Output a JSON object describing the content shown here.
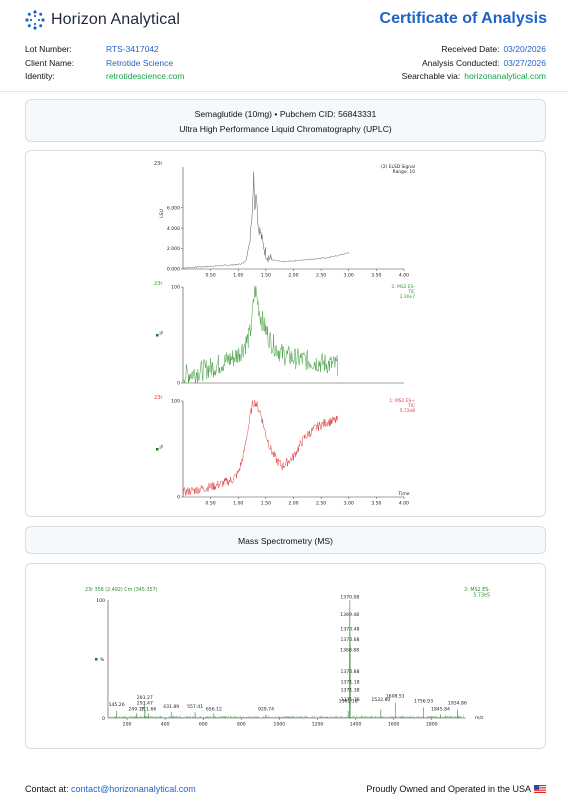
{
  "header": {
    "brand": "Horizon Analytical",
    "doc_title": "Certificate of Analysis"
  },
  "meta_left": [
    {
      "label": "Lot Number:",
      "value": "RTS-3417042",
      "color": "blue"
    },
    {
      "label": "Client Name:",
      "value": "Retrotide Science",
      "color": "blue"
    },
    {
      "label": "Identity:",
      "value": "retrotidescience.com",
      "color": "green"
    }
  ],
  "meta_right": [
    {
      "label": "Received Date:",
      "value": "03/20/2026",
      "color": "blue"
    },
    {
      "label": "Analysis Conducted:",
      "value": "03/27/2026",
      "color": "blue"
    },
    {
      "label": "Searchable via:",
      "value": "horizonanalytical.com",
      "color": "green"
    }
  ],
  "uplc_section": {
    "line1": "Semaglutide (10mg) • Pubchem CID: 56843331",
    "line2": "Ultra High Performance Liquid Chromatography (UPLC)"
  },
  "ms_section": {
    "title": "Mass Spectrometry (MS)"
  },
  "chart_data": [
    {
      "type": "line",
      "panel": "ELSD",
      "corner_label": "23r",
      "legend": [
        "(2) ELSD Signal",
        "Range: 10"
      ],
      "ylabel": "LSU",
      "yticks": [
        "0.000",
        "2.000",
        "4.000",
        "6.000"
      ],
      "xticks": [
        "0.50",
        "1.00",
        "1.50",
        "2.00",
        "2.50",
        "3.00",
        "3.50",
        "4.00"
      ],
      "xlim": [
        0.0,
        4.0
      ],
      "ylim": [
        0,
        10
      ],
      "color": "#555555",
      "x": [
        0.0,
        0.3,
        0.6,
        0.9,
        1.0,
        1.1,
        1.15,
        1.2,
        1.25,
        1.28,
        1.3,
        1.33,
        1.36,
        1.4,
        1.45,
        1.5,
        1.6,
        1.7,
        1.8,
        2.0,
        2.2,
        2.4,
        2.6,
        2.8,
        3.0
      ],
      "y": [
        0.1,
        0.2,
        0.3,
        0.4,
        0.45,
        0.6,
        1.0,
        2.5,
        5.5,
        9.2,
        6.2,
        7.6,
        4.2,
        3.6,
        2.4,
        1.5,
        0.9,
        0.8,
        0.7,
        0.8,
        0.9,
        1.0,
        1.1,
        1.3,
        1.6
      ]
    },
    {
      "type": "line",
      "panel": "MS2 ES- TIC",
      "corner_label": "23r",
      "legend": [
        "2: MS2 ES-",
        "TIC",
        "2.30e7"
      ],
      "ylabel": "%",
      "yticks": [
        "0",
        "100"
      ],
      "xlim": [
        0.0,
        4.0
      ],
      "ylim": [
        0,
        100
      ],
      "color": "#3a9a3a",
      "x": [
        0.0,
        0.3,
        0.6,
        0.9,
        1.0,
        1.1,
        1.2,
        1.25,
        1.3,
        1.35,
        1.4,
        1.5,
        1.6,
        1.8,
        2.0,
        2.2,
        2.4,
        2.6,
        2.8
      ],
      "y": [
        8,
        12,
        18,
        26,
        30,
        38,
        48,
        65,
        100,
        85,
        70,
        55,
        42,
        30,
        26,
        24,
        22,
        20,
        18
      ]
    },
    {
      "type": "line",
      "panel": "MS2 ES+ TIC",
      "corner_label": "23r",
      "legend": [
        "1: MS2 ES+",
        "TIC",
        "5.72e8"
      ],
      "ylabel": "%",
      "yticks": [
        "0",
        "100"
      ],
      "xticks": [
        "0.50",
        "1.00",
        "1.50",
        "2.00",
        "2.50",
        "3.00",
        "3.50",
        "4.00"
      ],
      "xlabel": "Time",
      "xlim": [
        0.0,
        4.0
      ],
      "ylim": [
        0,
        100
      ],
      "color": "#e23b3b",
      "x": [
        0.0,
        0.3,
        0.6,
        0.9,
        1.0,
        1.1,
        1.2,
        1.25,
        1.3,
        1.4,
        1.5,
        1.6,
        1.7,
        1.8,
        2.0,
        2.2,
        2.4,
        2.6,
        2.8
      ],
      "y": [
        5,
        8,
        12,
        18,
        25,
        45,
        78,
        95,
        100,
        88,
        65,
        48,
        38,
        32,
        42,
        62,
        72,
        78,
        80
      ]
    },
    {
      "type": "bar",
      "panel": "MS spectrum",
      "title": "23r 356 (2.492) Cm (345:357)",
      "legend": [
        "2: MS2 ES-",
        "5.73e5"
      ],
      "ylabel": "%",
      "xlabel": "m/z",
      "yticks": [
        "0",
        "100"
      ],
      "xticks": [
        "200",
        "400",
        "600",
        "800",
        "1000",
        "1200",
        "1400",
        "1600",
        "1800"
      ],
      "xlim": [
        100,
        1980
      ],
      "ylim": [
        0,
        100
      ],
      "peaks": [
        {
          "mz": 145.26,
          "intensity": 6
        },
        {
          "mz": 249.17,
          "intensity": 4
        },
        {
          "mz": 293.27,
          "intensity": 12
        },
        {
          "mz": 293.47,
          "intensity": 7
        },
        {
          "mz": 311.66,
          "intensity": 4
        },
        {
          "mz": 431.89,
          "intensity": 5
        },
        {
          "mz": 557.41,
          "intensity": 5
        },
        {
          "mz": 656.12,
          "intensity": 4
        },
        {
          "mz": 929.74,
          "intensity": 3
        },
        {
          "mz": 1361.18,
          "intensity": 6
        },
        {
          "mz": 1368.88,
          "intensity": 55
        },
        {
          "mz": 1369.48,
          "intensity": 85
        },
        {
          "mz": 1370.08,
          "intensity": 100
        },
        {
          "mz": 1370.48,
          "intensity": 73
        },
        {
          "mz": 1370.68,
          "intensity": 62
        },
        {
          "mz": 1370.88,
          "intensity": 38
        },
        {
          "mz": 1371.18,
          "intensity": 26
        },
        {
          "mz": 1371.38,
          "intensity": 19
        },
        {
          "mz": 1371.78,
          "intensity": 9
        },
        {
          "mz": 1532.8,
          "intensity": 7
        },
        {
          "mz": 1608.51,
          "intensity": 13
        },
        {
          "mz": 1756.93,
          "intensity": 9
        },
        {
          "mz": 1845.84,
          "intensity": 3
        },
        {
          "mz": 1934.86,
          "intensity": 7
        }
      ],
      "peak_labels": [
        {
          "text": "1370.08",
          "mz": 1370.08,
          "intensity": 100
        },
        {
          "text": "1369.48",
          "mz": 1369.48,
          "intensity": 85
        },
        {
          "text": "1370.48",
          "mz": 1370.48,
          "intensity": 73
        },
        {
          "text": "1370.68",
          "mz": 1370.68,
          "intensity": 64
        },
        {
          "text": "1368.88",
          "mz": 1368.88,
          "intensity": 55
        },
        {
          "text": "1370.88",
          "mz": 1370.88,
          "intensity": 37
        },
        {
          "text": "1371.18",
          "mz": 1371.18,
          "intensity": 28
        },
        {
          "text": "1371.38",
          "mz": 1371.38,
          "intensity": 21
        },
        {
          "text": "1361.18",
          "mz": 1361.18,
          "intensity": 12
        },
        {
          "text": "1371.78",
          "mz": 1371.78,
          "intensity": 13
        },
        {
          "text": "1532.80",
          "mz": 1532.8,
          "intensity": 13
        },
        {
          "text": "1608.51",
          "mz": 1608.51,
          "intensity": 16
        },
        {
          "text": "1756.93",
          "mz": 1756.93,
          "intensity": 12
        },
        {
          "text": "1934.86",
          "mz": 1934.86,
          "intensity": 10
        },
        {
          "text": "1845.84",
          "mz": 1845.84,
          "intensity": 5
        },
        {
          "text": "145.26",
          "mz": 145.26,
          "intensity": 9
        },
        {
          "text": "249.17",
          "mz": 249.17,
          "intensity": 5
        },
        {
          "text": "293.27",
          "mz": 293.27,
          "intensity": 15
        },
        {
          "text": "293.47",
          "mz": 293.47,
          "intensity": 10
        },
        {
          "text": "311.66",
          "mz": 311.66,
          "intensity": 5
        },
        {
          "text": "431.89",
          "mz": 431.89,
          "intensity": 7
        },
        {
          "text": "557.41",
          "mz": 557.41,
          "intensity": 7
        },
        {
          "text": "656.12",
          "mz": 656.12,
          "intensity": 5
        },
        {
          "text": "929.74",
          "mz": 929.74,
          "intensity": 5
        }
      ],
      "color": "#2e8b2e"
    }
  ],
  "footer": {
    "contact_label": "Contact at:",
    "email": "contact@horizonanalytical.com",
    "ownership": "Proudly Owned and Operated in the USA"
  },
  "colors": {
    "accent_blue": "#1f63c6",
    "link_blue": "#2563c9",
    "green": "#16a34a"
  }
}
